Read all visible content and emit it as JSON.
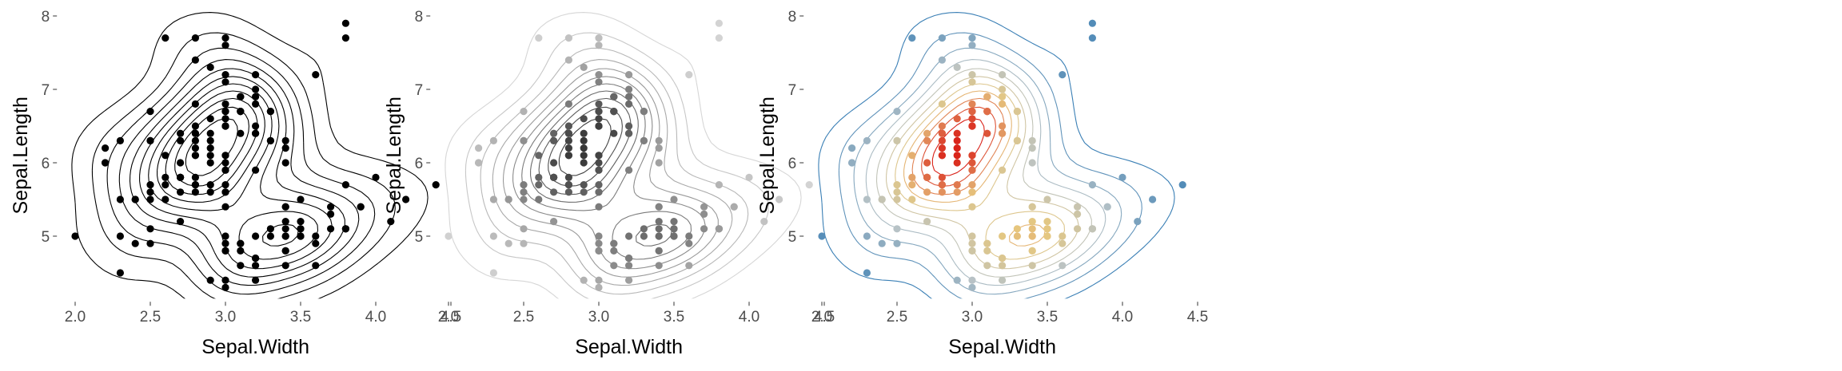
{
  "chart_data": [
    {
      "type": "scatter",
      "variant": "points-with-density-contours",
      "color_mode": "black",
      "xlabel": "Sepal.Width",
      "ylabel": "Sepal.Length",
      "xlim": [
        1.9,
        4.5
      ],
      "ylim": [
        4.15,
        8.1
      ],
      "x_ticks": [
        2.0,
        2.5,
        3.0,
        3.5,
        4.0,
        4.5
      ],
      "x_tick_labels": [
        "2.0",
        "2.5",
        "3.0",
        "3.5",
        "4.0",
        "4.5"
      ],
      "y_ticks": [
        5,
        6,
        7,
        8
      ],
      "y_tick_labels": [
        "5",
        "6",
        "7",
        "8"
      ]
    },
    {
      "type": "scatter",
      "variant": "points-with-density-contours",
      "color_mode": "grey-by-density",
      "xlabel": "Sepal.Width",
      "ylabel": "Sepal.Length",
      "xlim": [
        1.9,
        4.5
      ],
      "ylim": [
        4.15,
        8.1
      ],
      "x_ticks": [
        2.0,
        2.5,
        3.0,
        3.5,
        4.0,
        4.5
      ],
      "x_tick_labels": [
        "2.0",
        "2.5",
        "3.0",
        "3.5",
        "4.0",
        "4.5"
      ],
      "y_ticks": [
        5,
        6,
        7,
        8
      ],
      "y_tick_labels": [
        "5",
        "6",
        "7",
        "8"
      ]
    },
    {
      "type": "scatter",
      "variant": "points-with-density-contours",
      "color_mode": "palette-by-density",
      "palette": [
        "#3A7FB5",
        "#B9C3C6",
        "#E6C77F",
        "#D92118"
      ],
      "xlabel": "Sepal.Width",
      "ylabel": "Sepal.Length",
      "xlim": [
        1.9,
        4.5
      ],
      "ylim": [
        4.15,
        8.1
      ],
      "x_ticks": [
        2.0,
        2.5,
        3.0,
        3.5,
        4.0,
        4.5
      ],
      "x_tick_labels": [
        "2.0",
        "2.5",
        "3.0",
        "3.5",
        "4.0",
        "4.5"
      ],
      "y_ticks": [
        5,
        6,
        7,
        8
      ],
      "y_tick_labels": [
        "5",
        "6",
        "7",
        "8"
      ]
    }
  ],
  "points": [
    [
      3.5,
      5.1
    ],
    [
      3.0,
      4.9
    ],
    [
      3.2,
      4.7
    ],
    [
      3.1,
      4.6
    ],
    [
      3.6,
      5.0
    ],
    [
      3.9,
      5.4
    ],
    [
      3.4,
      4.6
    ],
    [
      3.4,
      5.0
    ],
    [
      2.9,
      4.4
    ],
    [
      3.1,
      4.9
    ],
    [
      3.7,
      5.4
    ],
    [
      3.4,
      4.8
    ],
    [
      3.0,
      4.8
    ],
    [
      3.0,
      4.3
    ],
    [
      4.0,
      5.8
    ],
    [
      4.4,
      5.7
    ],
    [
      3.9,
      5.4
    ],
    [
      3.5,
      5.1
    ],
    [
      3.8,
      5.7
    ],
    [
      3.8,
      5.1
    ],
    [
      3.4,
      5.4
    ],
    [
      3.7,
      5.1
    ],
    [
      3.6,
      4.6
    ],
    [
      3.3,
      5.1
    ],
    [
      3.4,
      4.8
    ],
    [
      3.0,
      5.0
    ],
    [
      3.4,
      5.0
    ],
    [
      3.5,
      5.2
    ],
    [
      3.4,
      5.2
    ],
    [
      3.2,
      4.7
    ],
    [
      3.1,
      4.8
    ],
    [
      3.4,
      5.4
    ],
    [
      4.1,
      5.2
    ],
    [
      4.2,
      5.5
    ],
    [
      3.1,
      4.9
    ],
    [
      3.2,
      5.0
    ],
    [
      3.5,
      5.5
    ],
    [
      3.6,
      4.9
    ],
    [
      3.0,
      4.4
    ],
    [
      3.4,
      5.1
    ],
    [
      3.5,
      5.0
    ],
    [
      2.3,
      4.5
    ],
    [
      3.2,
      4.4
    ],
    [
      3.5,
      5.0
    ],
    [
      3.8,
      5.1
    ],
    [
      3.0,
      4.8
    ],
    [
      3.8,
      5.1
    ],
    [
      3.2,
      4.6
    ],
    [
      3.7,
      5.3
    ],
    [
      3.3,
      5.0
    ],
    [
      3.2,
      7.0
    ],
    [
      3.2,
      6.4
    ],
    [
      3.1,
      6.9
    ],
    [
      2.3,
      5.5
    ],
    [
      2.8,
      6.5
    ],
    [
      2.8,
      5.7
    ],
    [
      3.3,
      6.3
    ],
    [
      2.4,
      4.9
    ],
    [
      2.9,
      6.6
    ],
    [
      2.7,
      5.2
    ],
    [
      2.0,
      5.0
    ],
    [
      3.0,
      5.9
    ],
    [
      2.2,
      6.0
    ],
    [
      2.9,
      6.1
    ],
    [
      2.9,
      5.6
    ],
    [
      3.1,
      6.7
    ],
    [
      3.0,
      5.6
    ],
    [
      2.7,
      5.8
    ],
    [
      2.2,
      6.2
    ],
    [
      2.5,
      5.6
    ],
    [
      3.2,
      5.9
    ],
    [
      2.8,
      6.1
    ],
    [
      2.5,
      6.3
    ],
    [
      2.8,
      6.1
    ],
    [
      2.9,
      6.4
    ],
    [
      3.0,
      6.6
    ],
    [
      2.8,
      6.8
    ],
    [
      3.0,
      6.7
    ],
    [
      2.9,
      6.0
    ],
    [
      2.6,
      5.7
    ],
    [
      2.4,
      5.5
    ],
    [
      2.4,
      5.5
    ],
    [
      2.7,
      5.8
    ],
    [
      2.7,
      6.0
    ],
    [
      3.0,
      5.4
    ],
    [
      3.4,
      6.0
    ],
    [
      3.1,
      6.7
    ],
    [
      2.3,
      6.3
    ],
    [
      3.0,
      5.6
    ],
    [
      2.5,
      5.5
    ],
    [
      2.6,
      5.5
    ],
    [
      3.0,
      6.1
    ],
    [
      2.6,
      5.8
    ],
    [
      2.3,
      5.0
    ],
    [
      2.7,
      5.6
    ],
    [
      3.0,
      5.7
    ],
    [
      2.9,
      5.7
    ],
    [
      2.9,
      6.2
    ],
    [
      2.5,
      5.1
    ],
    [
      2.8,
      5.7
    ],
    [
      3.3,
      6.3
    ],
    [
      2.7,
      5.8
    ],
    [
      3.0,
      7.1
    ],
    [
      2.9,
      6.3
    ],
    [
      3.0,
      6.5
    ],
    [
      3.0,
      7.6
    ],
    [
      2.5,
      4.9
    ],
    [
      2.9,
      7.3
    ],
    [
      2.5,
      6.7
    ],
    [
      3.6,
      7.2
    ],
    [
      3.2,
      6.5
    ],
    [
      2.7,
      6.4
    ],
    [
      3.0,
      6.8
    ],
    [
      2.5,
      5.7
    ],
    [
      2.8,
      5.8
    ],
    [
      3.2,
      6.4
    ],
    [
      3.0,
      6.5
    ],
    [
      3.8,
      7.7
    ],
    [
      2.6,
      7.7
    ],
    [
      2.2,
      6.0
    ],
    [
      3.2,
      6.9
    ],
    [
      2.8,
      5.6
    ],
    [
      2.8,
      7.7
    ],
    [
      2.7,
      6.3
    ],
    [
      3.3,
      6.7
    ],
    [
      3.2,
      7.2
    ],
    [
      2.8,
      6.2
    ],
    [
      3.0,
      6.1
    ],
    [
      2.8,
      6.4
    ],
    [
      3.0,
      7.2
    ],
    [
      2.8,
      7.4
    ],
    [
      3.8,
      7.9
    ],
    [
      2.8,
      6.4
    ],
    [
      2.8,
      6.3
    ],
    [
      2.6,
      6.1
    ],
    [
      3.0,
      7.7
    ],
    [
      3.4,
      6.3
    ],
    [
      3.1,
      6.4
    ],
    [
      3.0,
      6.0
    ],
    [
      3.1,
      6.9
    ],
    [
      3.1,
      6.7
    ],
    [
      3.1,
      6.9
    ],
    [
      2.7,
      5.8
    ],
    [
      3.2,
      6.8
    ],
    [
      3.3,
      6.7
    ],
    [
      3.0,
      6.7
    ],
    [
      2.5,
      6.3
    ],
    [
      3.0,
      6.5
    ],
    [
      3.4,
      6.2
    ],
    [
      3.0,
      5.9
    ]
  ]
}
